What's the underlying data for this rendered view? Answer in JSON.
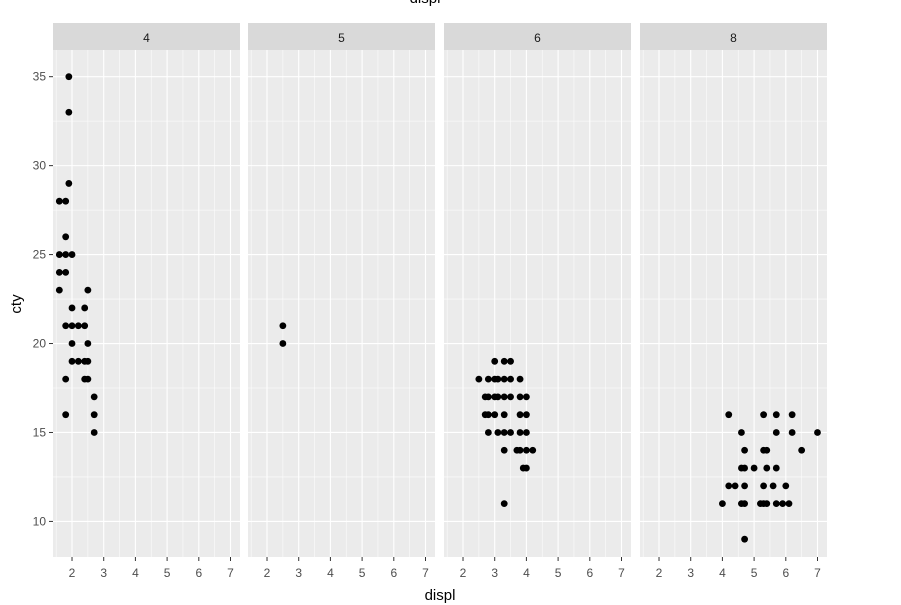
{
  "chart_data": {
    "type": "scatter",
    "title": "",
    "top_axis_label_partial": "displ",
    "xlabel": "displ",
    "ylabel": "cty",
    "xlim": [
      1.4,
      7.3
    ],
    "ylim": [
      8,
      36.5
    ],
    "x_ticks": [
      2,
      3,
      4,
      5,
      6,
      7
    ],
    "y_ticks": [
      10,
      15,
      20,
      25,
      30,
      35
    ],
    "grid": true,
    "facet_variable": "cyl",
    "facets": [
      {
        "label": "4",
        "points": [
          [
            1.9,
            35
          ],
          [
            1.9,
            33
          ],
          [
            1.9,
            29
          ],
          [
            1.6,
            28
          ],
          [
            1.8,
            28
          ],
          [
            1.8,
            26
          ],
          [
            1.6,
            25
          ],
          [
            1.8,
            25
          ],
          [
            2.0,
            25
          ],
          [
            1.6,
            24
          ],
          [
            1.8,
            24
          ],
          [
            1.6,
            23
          ],
          [
            2.5,
            23
          ],
          [
            2.0,
            22
          ],
          [
            2.4,
            22
          ],
          [
            1.8,
            21
          ],
          [
            2.0,
            21
          ],
          [
            2.2,
            21
          ],
          [
            2.4,
            21
          ],
          [
            2.0,
            20
          ],
          [
            2.5,
            20
          ],
          [
            2.0,
            19
          ],
          [
            2.2,
            19
          ],
          [
            2.4,
            19
          ],
          [
            2.5,
            19
          ],
          [
            1.8,
            18
          ],
          [
            2.4,
            18
          ],
          [
            2.5,
            18
          ],
          [
            2.7,
            17
          ],
          [
            1.8,
            16
          ],
          [
            2.7,
            16
          ],
          [
            2.7,
            15
          ]
        ]
      },
      {
        "label": "5",
        "points": [
          [
            2.5,
            21
          ],
          [
            2.5,
            20
          ]
        ]
      },
      {
        "label": "6",
        "points": [
          [
            3.0,
            19
          ],
          [
            3.3,
            19
          ],
          [
            3.5,
            19
          ],
          [
            2.5,
            18
          ],
          [
            2.8,
            18
          ],
          [
            3.0,
            18
          ],
          [
            3.1,
            18
          ],
          [
            3.3,
            18
          ],
          [
            3.5,
            18
          ],
          [
            3.8,
            18
          ],
          [
            2.7,
            17
          ],
          [
            2.8,
            17
          ],
          [
            3.0,
            17
          ],
          [
            3.1,
            17
          ],
          [
            3.3,
            17
          ],
          [
            3.5,
            17
          ],
          [
            3.8,
            17
          ],
          [
            4.0,
            17
          ],
          [
            2.7,
            16
          ],
          [
            2.8,
            16
          ],
          [
            3.0,
            16
          ],
          [
            3.3,
            16
          ],
          [
            3.8,
            16
          ],
          [
            4.0,
            16
          ],
          [
            2.8,
            15
          ],
          [
            3.1,
            15
          ],
          [
            3.3,
            15
          ],
          [
            3.5,
            15
          ],
          [
            3.8,
            15
          ],
          [
            4.0,
            15
          ],
          [
            3.3,
            14
          ],
          [
            3.7,
            14
          ],
          [
            3.8,
            14
          ],
          [
            4.0,
            14
          ],
          [
            4.2,
            14
          ],
          [
            3.9,
            13
          ],
          [
            4.0,
            13
          ],
          [
            3.3,
            11
          ]
        ]
      },
      {
        "label": "8",
        "points": [
          [
            4.2,
            16
          ],
          [
            5.3,
            16
          ],
          [
            5.7,
            16
          ],
          [
            6.2,
            16
          ],
          [
            4.6,
            15
          ],
          [
            5.7,
            15
          ],
          [
            6.2,
            15
          ],
          [
            7.0,
            15
          ],
          [
            4.7,
            14
          ],
          [
            5.3,
            14
          ],
          [
            5.4,
            14
          ],
          [
            6.5,
            14
          ],
          [
            4.6,
            13
          ],
          [
            4.7,
            13
          ],
          [
            5.0,
            13
          ],
          [
            5.4,
            13
          ],
          [
            5.7,
            13
          ],
          [
            4.2,
            12
          ],
          [
            4.4,
            12
          ],
          [
            4.7,
            12
          ],
          [
            5.3,
            12
          ],
          [
            5.6,
            12
          ],
          [
            6.0,
            12
          ],
          [
            4.0,
            11
          ],
          [
            4.6,
            11
          ],
          [
            4.7,
            11
          ],
          [
            5.2,
            11
          ],
          [
            5.3,
            11
          ],
          [
            5.4,
            11
          ],
          [
            5.7,
            11
          ],
          [
            5.9,
            11
          ],
          [
            6.1,
            11
          ],
          [
            4.7,
            9
          ]
        ]
      }
    ]
  }
}
